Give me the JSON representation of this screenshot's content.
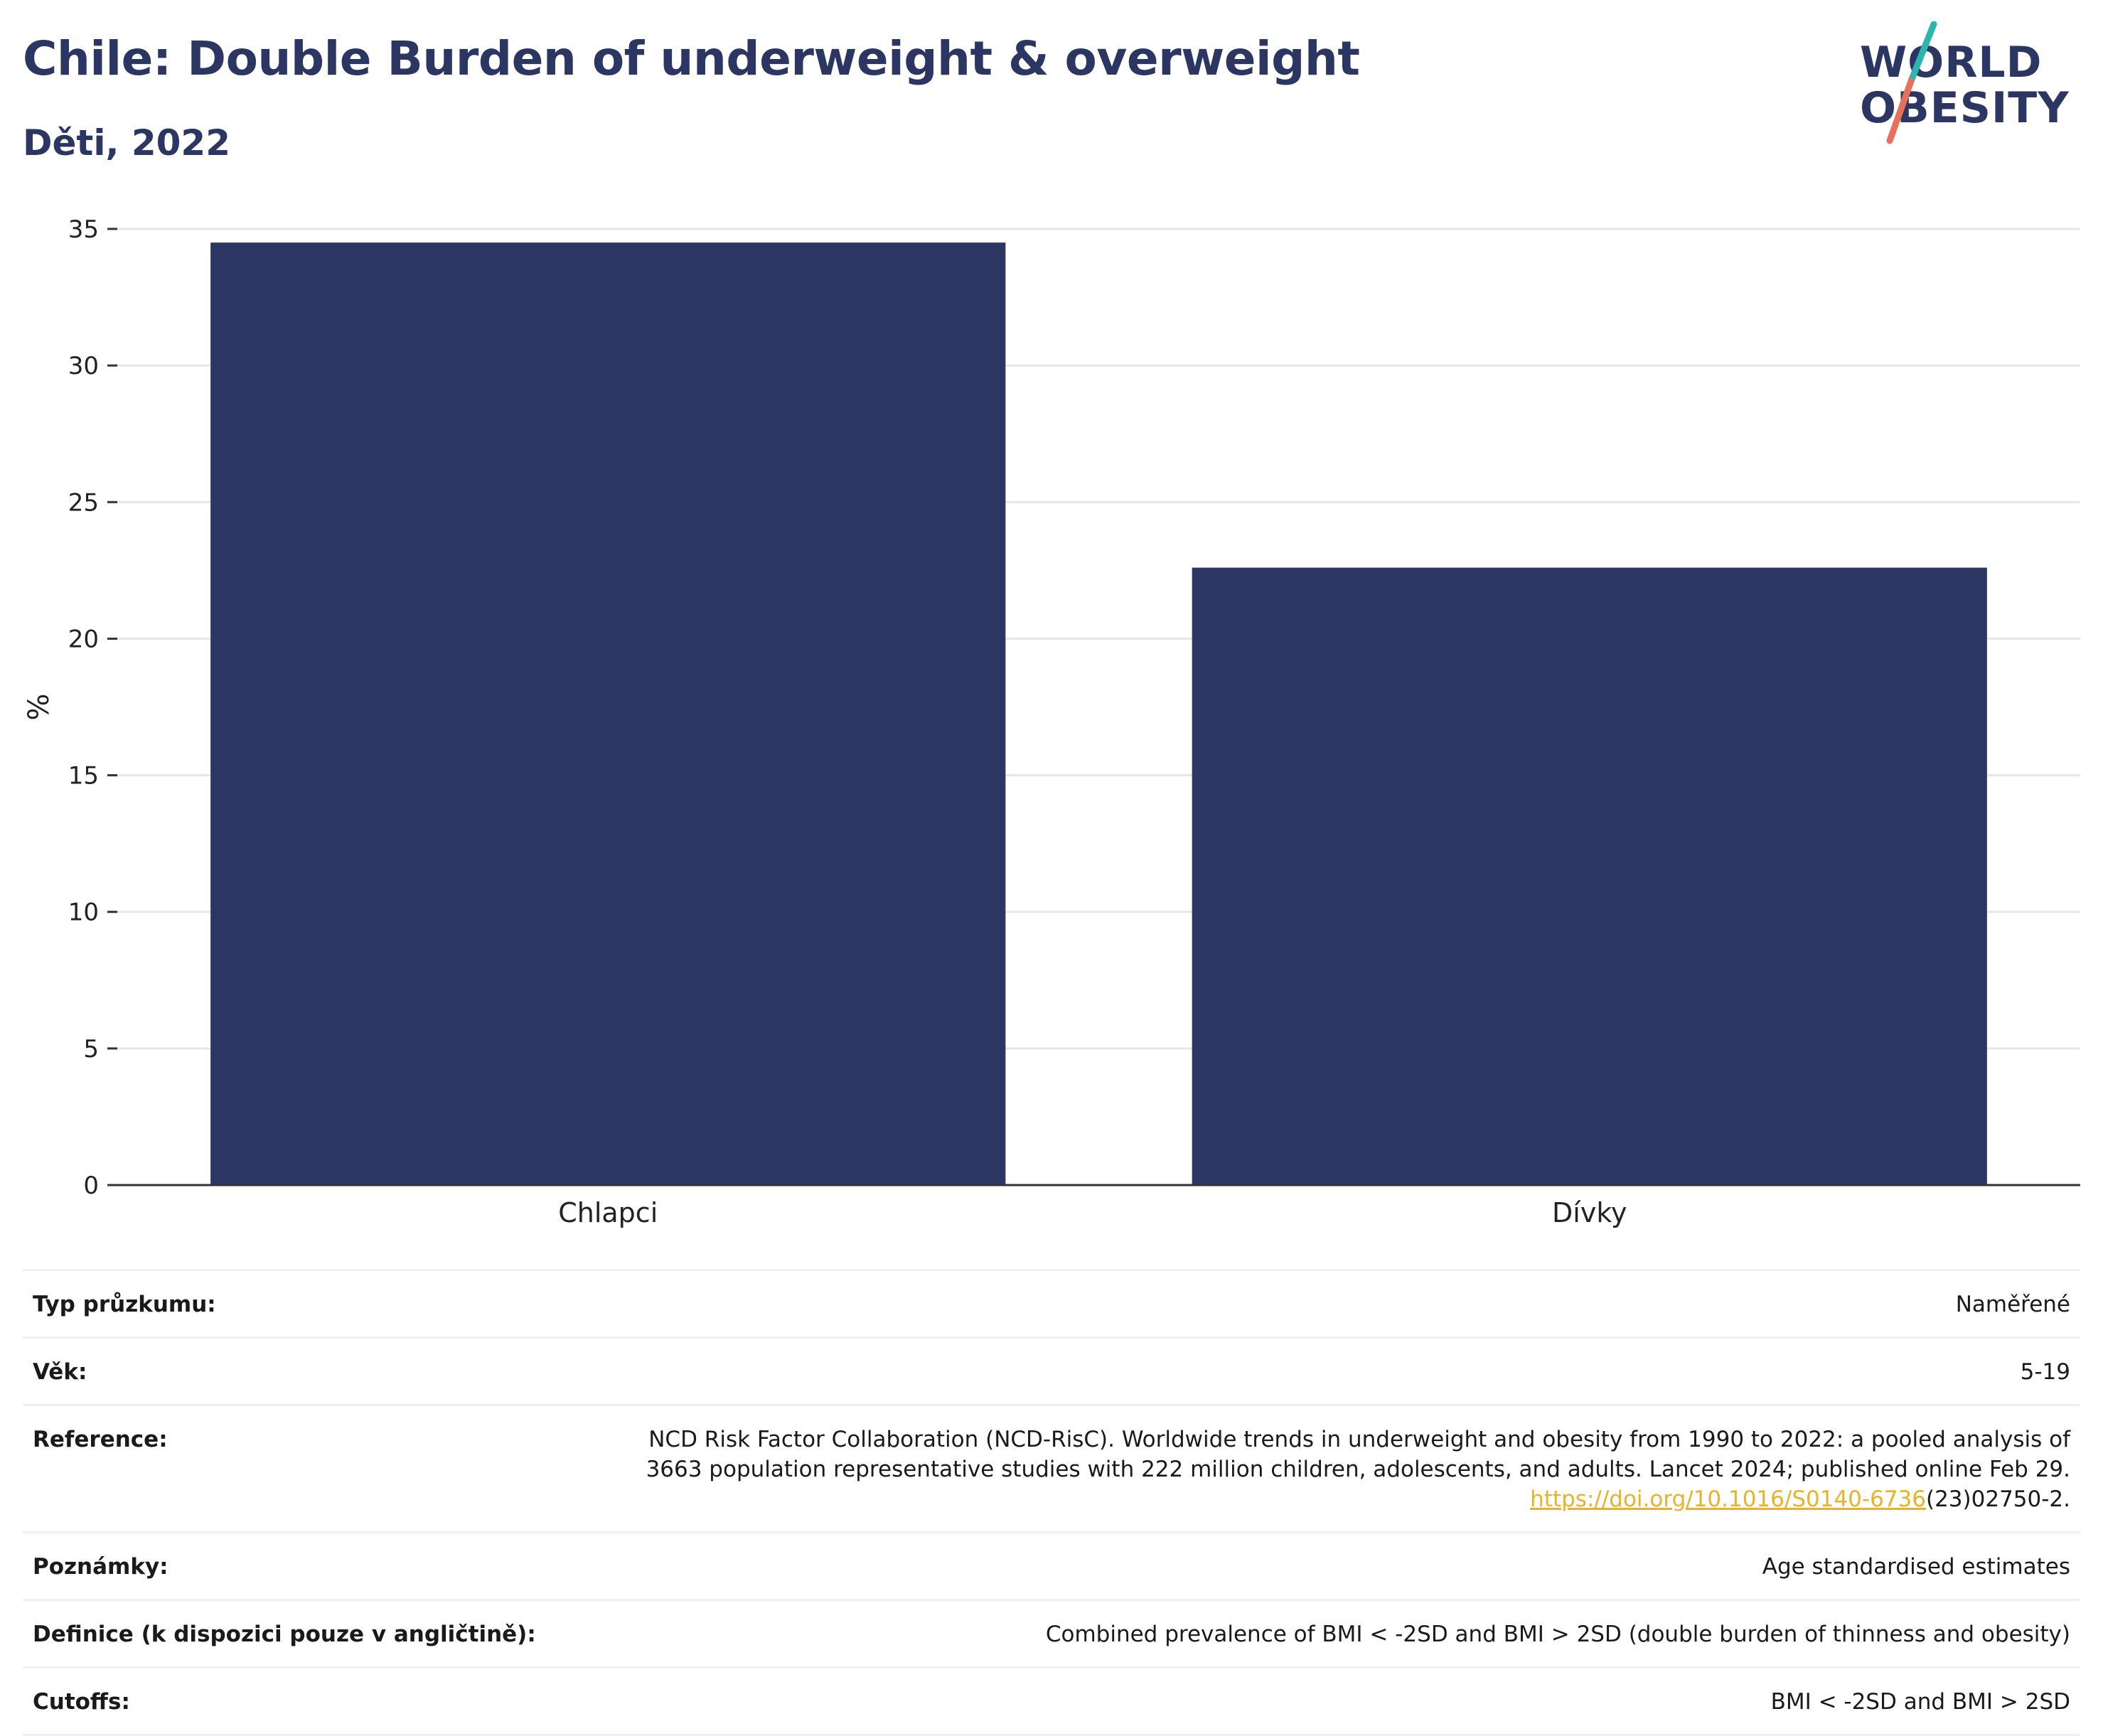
{
  "header": {
    "title": "Chile: Double Burden of underweight & overweight",
    "subtitle": "Děti, 2022"
  },
  "logo": {
    "line1": "WORLD",
    "line2": "OBESITY",
    "colors": {
      "text": "#2b3663",
      "slash_top": "#2bb6b0",
      "slash_bottom": "#e8705a"
    }
  },
  "colors": {
    "bar": "#2b3663",
    "grid": "#e6e6e6",
    "axis": "#333333",
    "link": "#e8b32a"
  },
  "chart_data": {
    "type": "bar",
    "categories": [
      "Chlapci",
      "Dívky"
    ],
    "values": [
      34.5,
      22.6
    ],
    "title": "",
    "xlabel": "",
    "ylabel": "%",
    "ylim": [
      0,
      35
    ],
    "yticks": [
      0,
      5,
      10,
      15,
      20,
      25,
      30,
      35
    ],
    "grid": true,
    "legend": "none"
  },
  "info": {
    "rows": [
      {
        "key": "Typ průzkumu:",
        "value": "Naměřené"
      },
      {
        "key": "Věk:",
        "value": "5-19"
      },
      {
        "key": "Reference:",
        "value_line1": "NCD Risk Factor Collaboration (NCD-RisC). Worldwide trends in underweight and obesity from 1990 to 2022: a pooled analysis of",
        "value_line2": "3663 population representative studies with 222 million children, adolescents, and adults. Lancet 2024; published online Feb 29.",
        "link_text": "https://doi.org/10.1016/S0140-6736",
        "link_suffix": "(23)02750-2."
      },
      {
        "key": "Poznámky:",
        "value": "Age standardised estimates"
      },
      {
        "key": "Definice (k dispozici pouze v angličtině):",
        "value": "Combined prevalence of BMI < -2SD and BMI > 2SD (double burden of thinness and obesity)"
      },
      {
        "key": "Cutoffs:",
        "value": "BMI < -2SD and BMI > 2SD"
      }
    ]
  }
}
